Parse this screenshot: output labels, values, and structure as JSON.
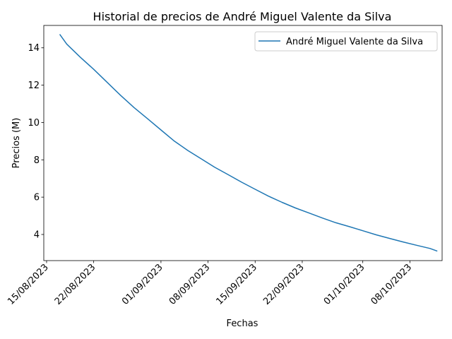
{
  "chart_data": {
    "type": "line",
    "title": "Historial de precios de André Miguel Valente da Silva",
    "xlabel": "Fechas",
    "ylabel": "Precios (M)",
    "xlim": [
      "2023-08-14T14:00",
      "2023-10-12T19:00"
    ],
    "ylim": [
      2.6,
      15.2
    ],
    "x_ticks": [
      "2023-08-15",
      "2023-08-22",
      "2023-09-01",
      "2023-09-08",
      "2023-09-15",
      "2023-09-22",
      "2023-10-01",
      "2023-10-08"
    ],
    "x_tick_labels": [
      "15/08/2023",
      "22/08/2023",
      "01/09/2023",
      "08/09/2023",
      "15/09/2023",
      "22/09/2023",
      "01/10/2023",
      "08/10/2023"
    ],
    "y_ticks": [
      4,
      6,
      8,
      10,
      12,
      14
    ],
    "grid": false,
    "legend": "top-right",
    "series": [
      {
        "name": "André Miguel Valente da Silva",
        "color": "#1f77b4",
        "points": [
          [
            "2023-08-17",
            14.7
          ],
          [
            "2023-08-18",
            14.2
          ],
          [
            "2023-08-20",
            13.5
          ],
          [
            "2023-08-22",
            12.85
          ],
          [
            "2023-08-24",
            12.15
          ],
          [
            "2023-08-26",
            11.45
          ],
          [
            "2023-08-28",
            10.8
          ],
          [
            "2023-08-30",
            10.2
          ],
          [
            "2023-09-01",
            9.6
          ],
          [
            "2023-09-03",
            9.0
          ],
          [
            "2023-09-05",
            8.5
          ],
          [
            "2023-09-07",
            8.05
          ],
          [
            "2023-09-09",
            7.6
          ],
          [
            "2023-09-11",
            7.2
          ],
          [
            "2023-09-13",
            6.8
          ],
          [
            "2023-09-15",
            6.42
          ],
          [
            "2023-09-17",
            6.05
          ],
          [
            "2023-09-19",
            5.72
          ],
          [
            "2023-09-21",
            5.42
          ],
          [
            "2023-09-23",
            5.15
          ],
          [
            "2023-09-25",
            4.88
          ],
          [
            "2023-09-27",
            4.63
          ],
          [
            "2023-09-29",
            4.42
          ],
          [
            "2023-10-01",
            4.2
          ],
          [
            "2023-10-03",
            3.98
          ],
          [
            "2023-10-05",
            3.79
          ],
          [
            "2023-10-07",
            3.6
          ],
          [
            "2023-10-09",
            3.42
          ],
          [
            "2023-10-11",
            3.25
          ],
          [
            "2023-10-12",
            3.12
          ]
        ]
      }
    ]
  }
}
